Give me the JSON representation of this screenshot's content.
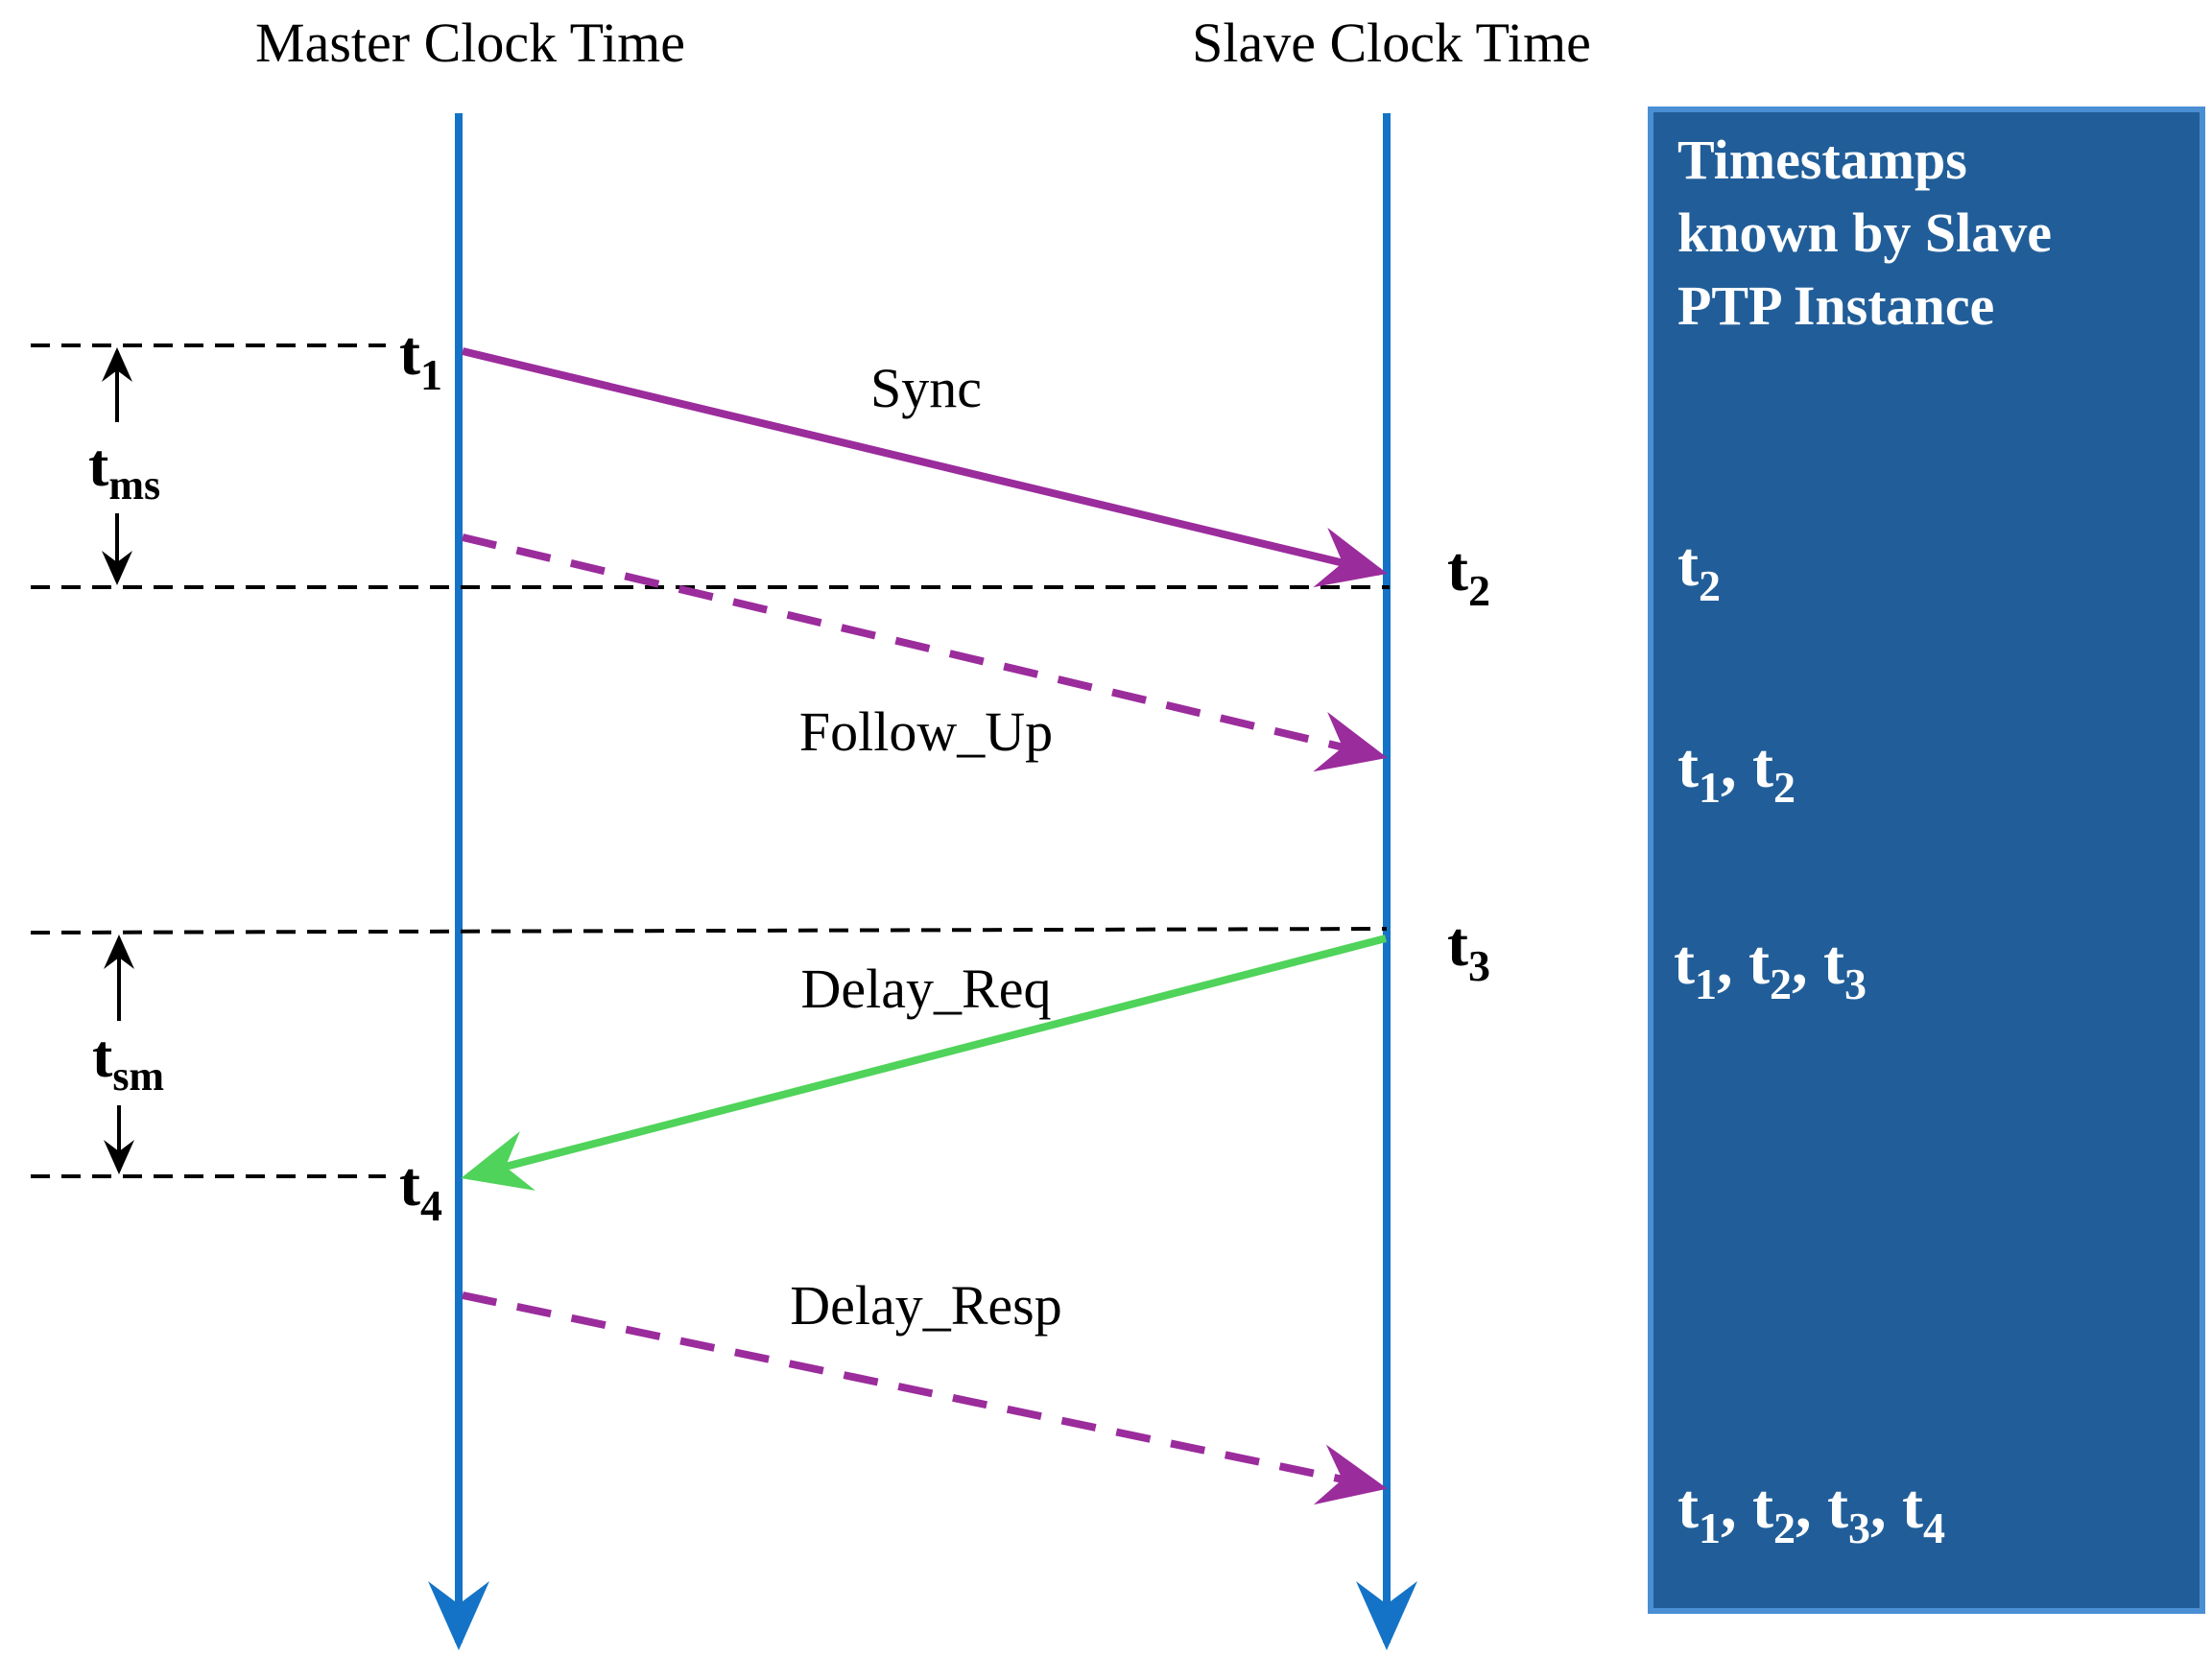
{
  "headers": {
    "master": "Master Clock Time",
    "slave": "Slave Clock Time"
  },
  "messages": {
    "sync": "Sync",
    "follow_up": "Follow_Up",
    "delay_req": "Delay_Req",
    "delay_resp": "Delay_Resp"
  },
  "timestamps": {
    "t1": {
      "base": "t",
      "sub": "1"
    },
    "t2": {
      "base": "t",
      "sub": "2"
    },
    "t3": {
      "base": "t",
      "sub": "3"
    },
    "t4": {
      "base": "t",
      "sub": "4"
    }
  },
  "intervals": {
    "tms": {
      "base": "t",
      "sub": "ms"
    },
    "tsm": {
      "base": "t",
      "sub": "sm"
    }
  },
  "panel": {
    "title_lines": [
      "Timestamps",
      "known by Slave",
      "PTP Instance"
    ],
    "rows": [
      [
        {
          "base": "t",
          "sub": "2"
        }
      ],
      [
        {
          "base": "t",
          "sub": "1"
        },
        {
          "base": "t",
          "sub": "2"
        }
      ],
      [
        {
          "base": "t",
          "sub": "1"
        },
        {
          "base": "t",
          "sub": "2"
        },
        {
          "base": "t",
          "sub": "3"
        }
      ],
      [
        {
          "base": "t",
          "sub": "1"
        },
        {
          "base": "t",
          "sub": "2"
        },
        {
          "base": "t",
          "sub": "3"
        },
        {
          "base": "t",
          "sub": "4"
        }
      ]
    ],
    "separator": ", "
  },
  "colors": {
    "timeline": "#1473c6",
    "message": "#9b2c9c",
    "delay_req": "#4fd35a",
    "panel_bg": "#215e99",
    "panel_border": "#4a8fd4",
    "panel_text": "#ffffff",
    "text": "#000000"
  }
}
